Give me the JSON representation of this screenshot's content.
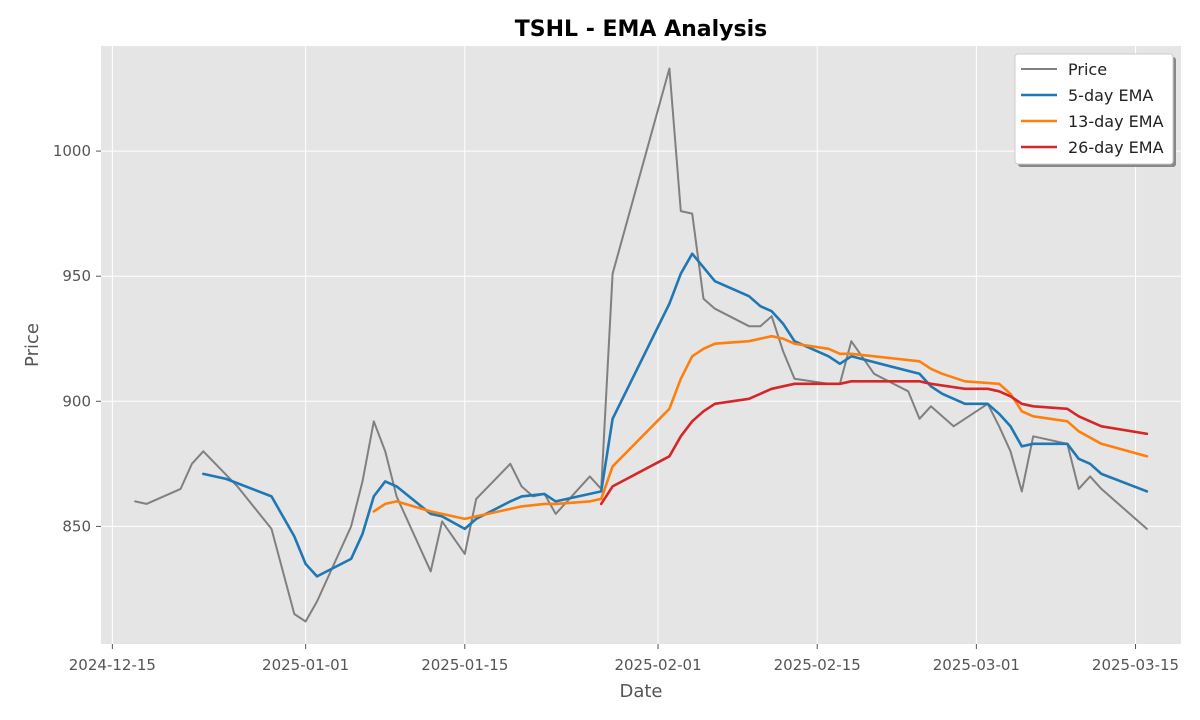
{
  "chart_data": {
    "type": "line",
    "title": "TSHL - EMA Analysis",
    "xlabel": "Date",
    "ylabel": "Price",
    "x_ticks": [
      "2024-12-15",
      "2025-01-01",
      "2025-01-15",
      "2025-02-01",
      "2025-02-15",
      "2025-03-01",
      "2025-03-15"
    ],
    "y_ticks": [
      850,
      900,
      950,
      1000
    ],
    "xlim": [
      "2024-12-14",
      "2025-03-19"
    ],
    "ylim": [
      803,
      1042
    ],
    "grid": true,
    "legend_position": "top-right",
    "series": [
      {
        "name": "Price",
        "color": "#808080",
        "points": [
          [
            "2024-12-17",
            860
          ],
          [
            "2024-12-18",
            859
          ],
          [
            "2024-12-21",
            865
          ],
          [
            "2024-12-22",
            875
          ],
          [
            "2024-12-23",
            880
          ],
          [
            "2024-12-26",
            866
          ],
          [
            "2024-12-29",
            849
          ],
          [
            "2024-12-31",
            815
          ],
          [
            "2025-01-01",
            812
          ],
          [
            "2025-01-02",
            820
          ],
          [
            "2025-01-05",
            850
          ],
          [
            "2025-01-06",
            868
          ],
          [
            "2025-01-07",
            892
          ],
          [
            "2025-01-08",
            880
          ],
          [
            "2025-01-09",
            862
          ],
          [
            "2025-01-12",
            832
          ],
          [
            "2025-01-13",
            852
          ],
          [
            "2025-01-15",
            839
          ],
          [
            "2025-01-16",
            861
          ],
          [
            "2025-01-19",
            875
          ],
          [
            "2025-01-20",
            866
          ],
          [
            "2025-01-21",
            862
          ],
          [
            "2025-01-22",
            863
          ],
          [
            "2025-01-23",
            855
          ],
          [
            "2025-01-24",
            860
          ],
          [
            "2025-01-26",
            870
          ],
          [
            "2025-01-27",
            865
          ],
          [
            "2025-01-28",
            951
          ],
          [
            "2025-02-02",
            1033
          ],
          [
            "2025-02-03",
            976
          ],
          [
            "2025-02-04",
            975
          ],
          [
            "2025-02-05",
            941
          ],
          [
            "2025-02-06",
            937
          ],
          [
            "2025-02-09",
            930
          ],
          [
            "2025-02-10",
            930
          ],
          [
            "2025-02-11",
            934
          ],
          [
            "2025-02-12",
            920
          ],
          [
            "2025-02-13",
            909
          ],
          [
            "2025-02-16",
            907
          ],
          [
            "2025-02-17",
            907
          ],
          [
            "2025-02-18",
            924
          ],
          [
            "2025-02-20",
            911
          ],
          [
            "2025-02-23",
            904
          ],
          [
            "2025-02-24",
            893
          ],
          [
            "2025-02-25",
            898
          ],
          [
            "2025-02-27",
            890
          ],
          [
            "2025-03-02",
            899
          ],
          [
            "2025-03-03",
            890
          ],
          [
            "2025-03-04",
            880
          ],
          [
            "2025-03-05",
            864
          ],
          [
            "2025-03-06",
            886
          ],
          [
            "2025-03-09",
            883
          ],
          [
            "2025-03-10",
            865
          ],
          [
            "2025-03-11",
            870
          ],
          [
            "2025-03-12",
            865
          ],
          [
            "2025-03-16",
            849
          ]
        ]
      },
      {
        "name": "5-day EMA",
        "color": "#1f77b4",
        "points": [
          [
            "2024-12-23",
            871
          ],
          [
            "2024-12-25",
            869
          ],
          [
            "2024-12-29",
            862
          ],
          [
            "2024-12-31",
            846
          ],
          [
            "2025-01-01",
            835
          ],
          [
            "2025-01-02",
            830
          ],
          [
            "2025-01-05",
            837
          ],
          [
            "2025-01-06",
            847
          ],
          [
            "2025-01-07",
            862
          ],
          [
            "2025-01-08",
            868
          ],
          [
            "2025-01-09",
            866
          ],
          [
            "2025-01-12",
            855
          ],
          [
            "2025-01-13",
            854
          ],
          [
            "2025-01-15",
            849
          ],
          [
            "2025-01-16",
            853
          ],
          [
            "2025-01-19",
            860
          ],
          [
            "2025-01-20",
            862
          ],
          [
            "2025-01-22",
            863
          ],
          [
            "2025-01-23",
            860
          ],
          [
            "2025-01-26",
            863
          ],
          [
            "2025-01-27",
            864
          ],
          [
            "2025-01-28",
            893
          ],
          [
            "2025-02-02",
            939
          ],
          [
            "2025-02-03",
            951
          ],
          [
            "2025-02-04",
            959
          ],
          [
            "2025-02-06",
            948
          ],
          [
            "2025-02-09",
            942
          ],
          [
            "2025-02-10",
            938
          ],
          [
            "2025-02-11",
            936
          ],
          [
            "2025-02-12",
            931
          ],
          [
            "2025-02-13",
            924
          ],
          [
            "2025-02-16",
            918
          ],
          [
            "2025-02-17",
            915
          ],
          [
            "2025-02-18",
            918
          ],
          [
            "2025-02-24",
            911
          ],
          [
            "2025-02-25",
            906
          ],
          [
            "2025-02-26",
            903
          ],
          [
            "2025-02-28",
            899
          ],
          [
            "2025-03-02",
            899
          ],
          [
            "2025-03-03",
            895
          ],
          [
            "2025-03-04",
            890
          ],
          [
            "2025-03-05",
            882
          ],
          [
            "2025-03-06",
            883
          ],
          [
            "2025-03-09",
            883
          ],
          [
            "2025-03-10",
            877
          ],
          [
            "2025-03-11",
            875
          ],
          [
            "2025-03-12",
            871
          ],
          [
            "2025-03-16",
            864
          ]
        ]
      },
      {
        "name": "13-day EMA",
        "color": "#ff7f0e",
        "points": [
          [
            "2025-01-07",
            856
          ],
          [
            "2025-01-08",
            859
          ],
          [
            "2025-01-09",
            860
          ],
          [
            "2025-01-12",
            856
          ],
          [
            "2025-01-13",
            855
          ],
          [
            "2025-01-15",
            853
          ],
          [
            "2025-01-16",
            854
          ],
          [
            "2025-01-19",
            857
          ],
          [
            "2025-01-20",
            858
          ],
          [
            "2025-01-22",
            859
          ],
          [
            "2025-01-23",
            859
          ],
          [
            "2025-01-26",
            860
          ],
          [
            "2025-01-27",
            861
          ],
          [
            "2025-01-28",
            874
          ],
          [
            "2025-02-02",
            897
          ],
          [
            "2025-02-03",
            909
          ],
          [
            "2025-02-04",
            918
          ],
          [
            "2025-02-05",
            921
          ],
          [
            "2025-02-06",
            923
          ],
          [
            "2025-02-09",
            924
          ],
          [
            "2025-02-10",
            925
          ],
          [
            "2025-02-11",
            926
          ],
          [
            "2025-02-12",
            925
          ],
          [
            "2025-02-13",
            923
          ],
          [
            "2025-02-16",
            921
          ],
          [
            "2025-02-17",
            919
          ],
          [
            "2025-02-18",
            919
          ],
          [
            "2025-02-24",
            916
          ],
          [
            "2025-02-25",
            913
          ],
          [
            "2025-02-26",
            911
          ],
          [
            "2025-02-28",
            908
          ],
          [
            "2025-03-03",
            907
          ],
          [
            "2025-03-04",
            903
          ],
          [
            "2025-03-05",
            896
          ],
          [
            "2025-03-06",
            894
          ],
          [
            "2025-03-09",
            892
          ],
          [
            "2025-03-10",
            888
          ],
          [
            "2025-03-12",
            883
          ],
          [
            "2025-03-16",
            878
          ]
        ]
      },
      {
        "name": "26-day EMA",
        "color": "#d62728",
        "points": [
          [
            "2025-01-27",
            859
          ],
          [
            "2025-01-28",
            866
          ],
          [
            "2025-02-02",
            878
          ],
          [
            "2025-02-03",
            886
          ],
          [
            "2025-02-04",
            892
          ],
          [
            "2025-02-05",
            896
          ],
          [
            "2025-02-06",
            899
          ],
          [
            "2025-02-09",
            901
          ],
          [
            "2025-02-10",
            903
          ],
          [
            "2025-02-11",
            905
          ],
          [
            "2025-02-12",
            906
          ],
          [
            "2025-02-13",
            907
          ],
          [
            "2025-02-16",
            907
          ],
          [
            "2025-02-17",
            907
          ],
          [
            "2025-02-18",
            908
          ],
          [
            "2025-02-20",
            908
          ],
          [
            "2025-02-24",
            908
          ],
          [
            "2025-02-25",
            907
          ],
          [
            "2025-02-28",
            905
          ],
          [
            "2025-03-02",
            905
          ],
          [
            "2025-03-03",
            904
          ],
          [
            "2025-03-04",
            902
          ],
          [
            "2025-03-05",
            899
          ],
          [
            "2025-03-06",
            898
          ],
          [
            "2025-03-09",
            897
          ],
          [
            "2025-03-10",
            894
          ],
          [
            "2025-03-12",
            890
          ],
          [
            "2025-03-16",
            887
          ]
        ]
      }
    ]
  }
}
